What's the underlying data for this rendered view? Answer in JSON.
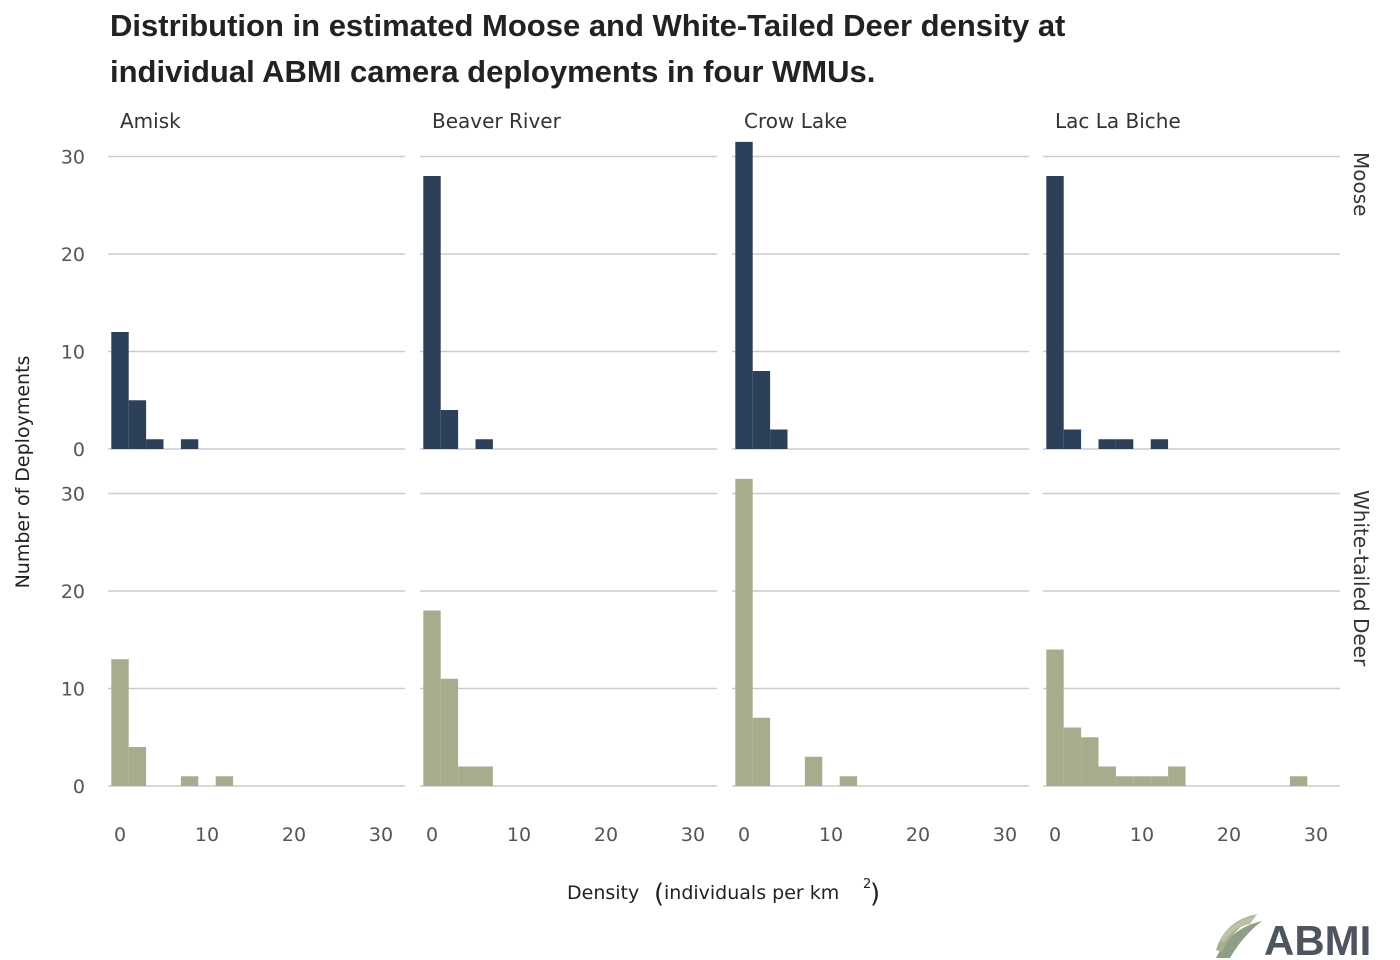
{
  "chart_data": {
    "type": "bar",
    "subtype": "histogram",
    "title_lines": [
      "Distribution in estimated Moose and White-Tailed Deer density at",
      "individual ABMI camera deployments in four WMUs."
    ],
    "xlabel": "Density (individuals per km²)",
    "xlabel_main": "Density",
    "xlabel_unit_text": "individuals per km",
    "xlabel_sup": "2",
    "ylabel": "Number of Deployments",
    "xlim": [
      -1,
      31
    ],
    "ylim": [
      0,
      30
    ],
    "x_ticks": [
      0,
      10,
      20,
      30
    ],
    "y_ticks": [
      0,
      10,
      20,
      30
    ],
    "bin_width": 2,
    "grid": "horizontal",
    "columns": [
      "Amisk",
      "Beaver River",
      "Crow Lake",
      "Lac La Biche"
    ],
    "rows": [
      {
        "name": "Moose",
        "color": "#2d4059"
      },
      {
        "name": "White-tailed Deer",
        "color": "#a7ad8c"
      }
    ],
    "panels": [
      {
        "row": "Moose",
        "column": "Amisk",
        "bins": [
          {
            "x": 0,
            "count": 12
          },
          {
            "x": 2,
            "count": 5
          },
          {
            "x": 4,
            "count": 1
          },
          {
            "x": 8,
            "count": 1
          }
        ]
      },
      {
        "row": "Moose",
        "column": "Beaver River",
        "bins": [
          {
            "x": 0,
            "count": 28
          },
          {
            "x": 2,
            "count": 4
          },
          {
            "x": 6,
            "count": 1
          }
        ]
      },
      {
        "row": "Moose",
        "column": "Crow Lake",
        "bins": [
          {
            "x": 0,
            "count": 31.5
          },
          {
            "x": 2,
            "count": 8
          },
          {
            "x": 4,
            "count": 2
          }
        ]
      },
      {
        "row": "Moose",
        "column": "Lac La Biche",
        "bins": [
          {
            "x": 0,
            "count": 28
          },
          {
            "x": 2,
            "count": 2
          },
          {
            "x": 6,
            "count": 1
          },
          {
            "x": 8,
            "count": 1
          },
          {
            "x": 12,
            "count": 1
          }
        ]
      },
      {
        "row": "White-tailed Deer",
        "column": "Amisk",
        "bins": [
          {
            "x": 0,
            "count": 13
          },
          {
            "x": 2,
            "count": 4
          },
          {
            "x": 8,
            "count": 1
          },
          {
            "x": 12,
            "count": 1
          }
        ]
      },
      {
        "row": "White-tailed Deer",
        "column": "Beaver River",
        "bins": [
          {
            "x": 0,
            "count": 18
          },
          {
            "x": 2,
            "count": 11
          },
          {
            "x": 4,
            "count": 2
          },
          {
            "x": 6,
            "count": 2
          }
        ]
      },
      {
        "row": "White-tailed Deer",
        "column": "Crow Lake",
        "bins": [
          {
            "x": 0,
            "count": 31.5
          },
          {
            "x": 2,
            "count": 7
          },
          {
            "x": 8,
            "count": 3
          },
          {
            "x": 12,
            "count": 1
          }
        ]
      },
      {
        "row": "White-tailed Deer",
        "column": "Lac La Biche",
        "bins": [
          {
            "x": 0,
            "count": 14
          },
          {
            "x": 2,
            "count": 6
          },
          {
            "x": 4,
            "count": 5
          },
          {
            "x": 6,
            "count": 2
          },
          {
            "x": 8,
            "count": 1
          },
          {
            "x": 10,
            "count": 1
          },
          {
            "x": 12,
            "count": 1
          },
          {
            "x": 14,
            "count": 2
          },
          {
            "x": 28,
            "count": 1
          }
        ]
      }
    ]
  },
  "logo": {
    "text": "ABMI",
    "icon": "leaf-logo-icon"
  }
}
